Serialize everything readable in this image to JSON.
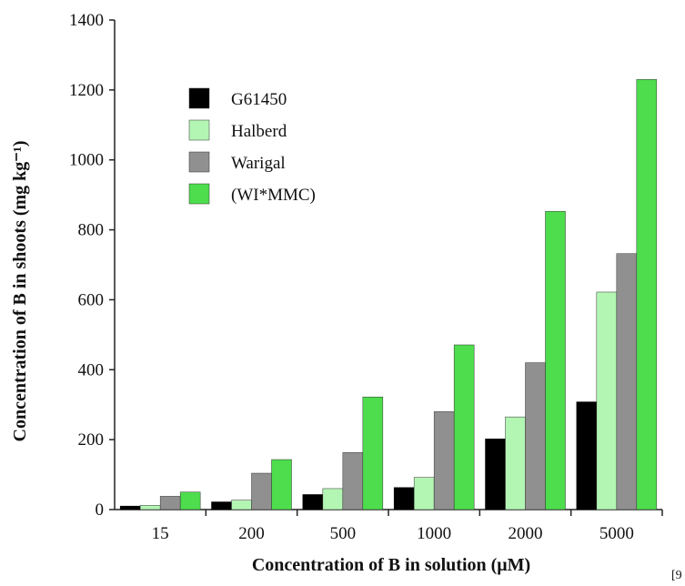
{
  "chart_data": {
    "type": "bar",
    "categories": [
      "15",
      "200",
      "500",
      "1000",
      "2000",
      "5000"
    ],
    "series": [
      {
        "name": "G61450",
        "color": "#000000",
        "values": [
          10,
          22,
          43,
          63,
          202,
          308
        ]
      },
      {
        "name": "Halberd",
        "color": "#b3f5b3",
        "values": [
          12,
          27,
          60,
          92,
          265,
          622
        ]
      },
      {
        "name": "Warigal",
        "color": "#909090",
        "values": [
          38,
          104,
          163,
          280,
          420,
          732
        ]
      },
      {
        "name": "(WI*MMC)",
        "color": "#4ddd4d",
        "values": [
          50,
          143,
          322,
          471,
          853,
          1230
        ]
      }
    ],
    "title": "",
    "xlabel": "Concentration of B in solution (μM)",
    "ylabel": "Concentration of B in shoots (mg kg⁻¹)",
    "ylim": [
      0,
      1400
    ],
    "yticks": [
      "0",
      "200",
      "400",
      "600",
      "800",
      "1000",
      "1200",
      "1400"
    ],
    "legend_position": "top-left",
    "grid": false
  },
  "reference": "[9"
}
